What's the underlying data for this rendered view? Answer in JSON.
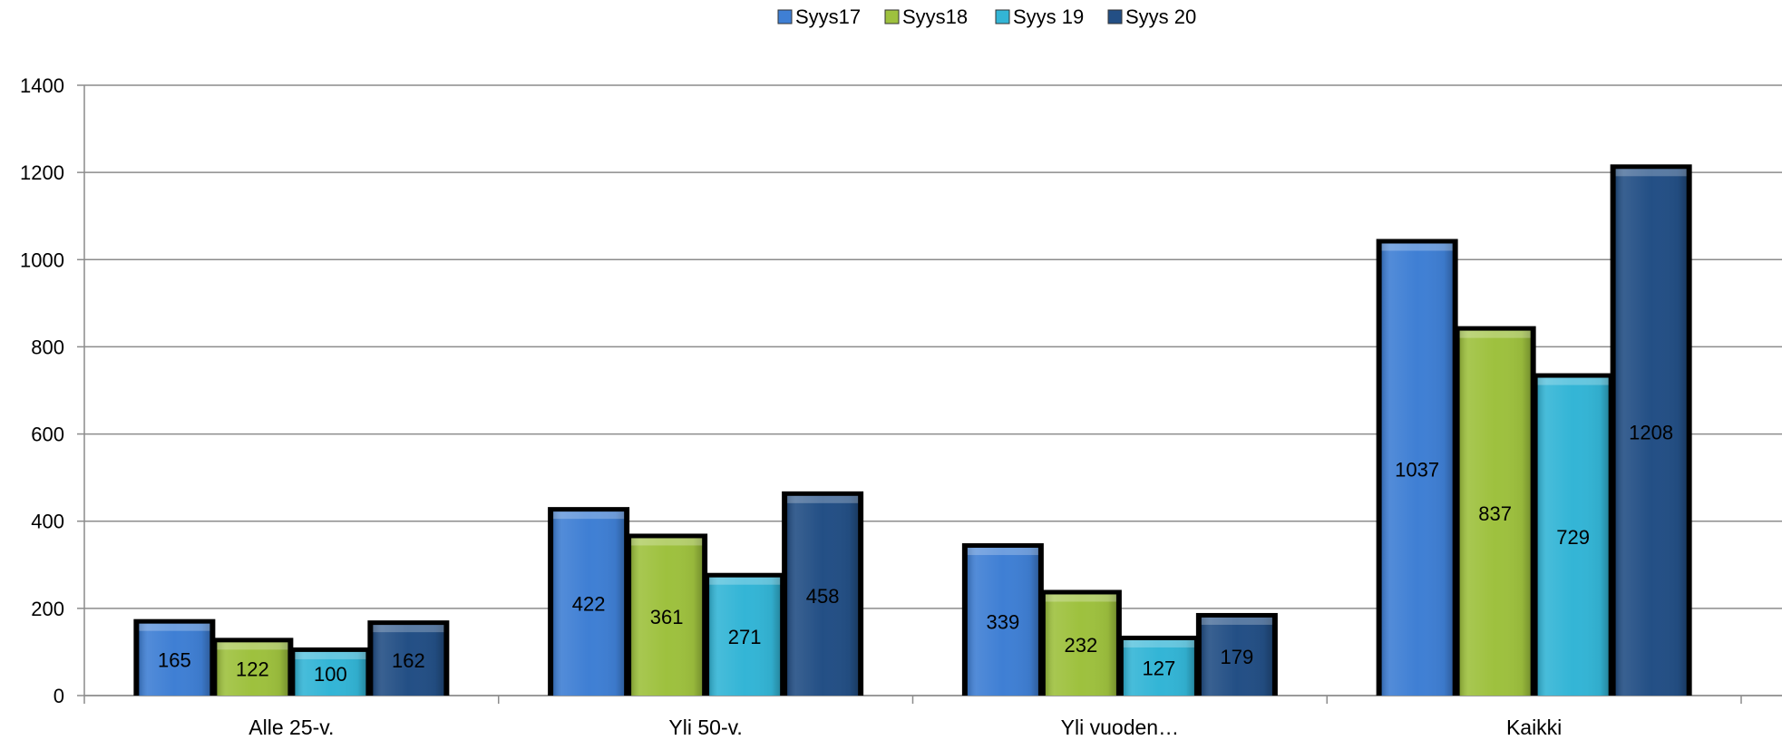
{
  "chart_data": {
    "type": "bar",
    "categories": [
      "Alle 25-v.",
      "Yli 50-v.",
      "Yli vuoden…",
      "Kaikki"
    ],
    "series": [
      {
        "name": "Syys17",
        "values": [
          165,
          422,
          339,
          1037
        ],
        "color": "#3f7fd4"
      },
      {
        "name": "Syys18",
        "values": [
          122,
          361,
          232,
          837
        ],
        "color": "#9ec13e"
      },
      {
        "name": "Syys 19",
        "values": [
          100,
          271,
          127,
          729
        ],
        "color": "#33b5d6"
      },
      {
        "name": "Syys 20",
        "values": [
          162,
          458,
          179,
          1208
        ],
        "color": "#234f85"
      }
    ],
    "ylim": [
      0,
      1400
    ],
    "yticks": [
      0,
      200,
      400,
      600,
      800,
      1000,
      1200,
      1400
    ],
    "grid": true,
    "legend_position": "top-center",
    "data_labels": true
  }
}
